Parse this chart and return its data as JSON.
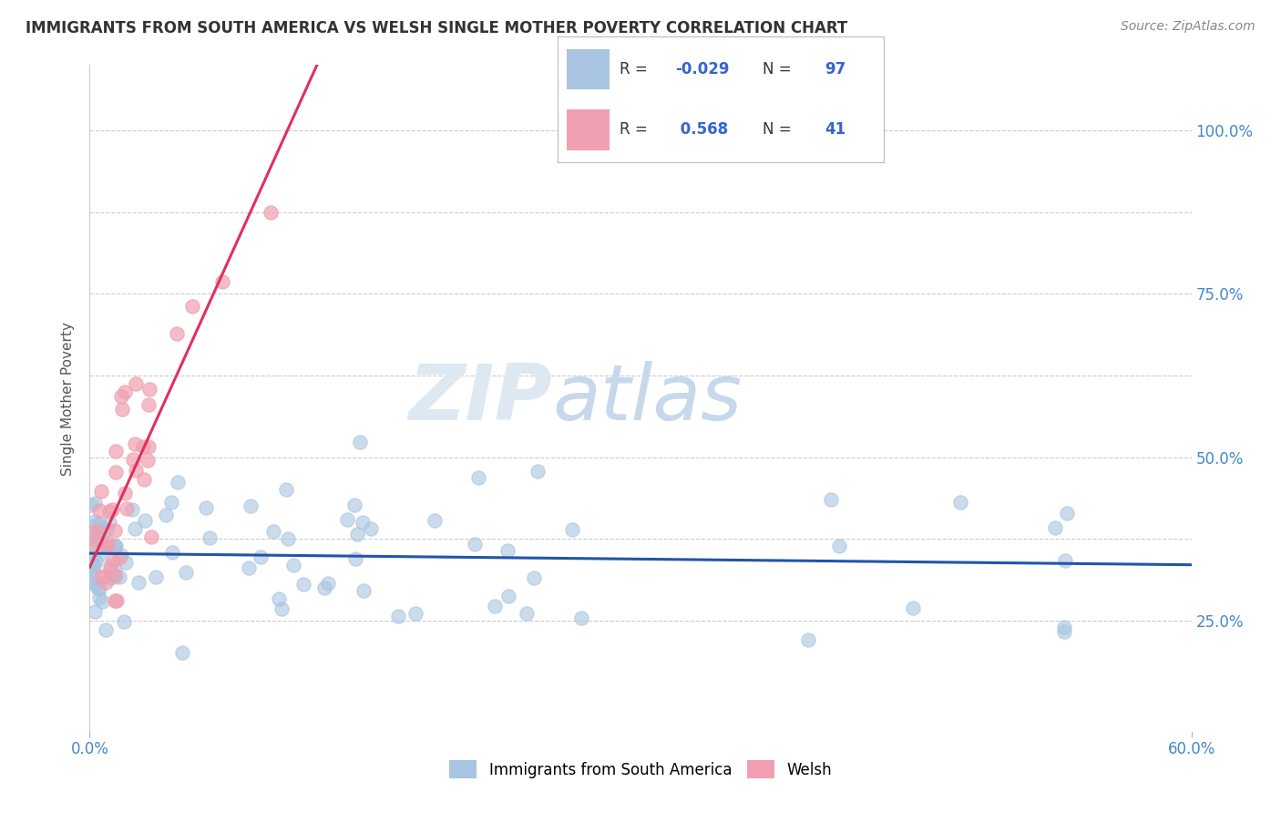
{
  "title": "IMMIGRANTS FROM SOUTH AMERICA VS WELSH SINGLE MOTHER POVERTY CORRELATION CHART",
  "source": "Source: ZipAtlas.com",
  "ylabel": "Single Mother Poverty",
  "xlim": [
    0.0,
    0.6
  ],
  "ylim": [
    0.08,
    1.1
  ],
  "blue_R": -0.029,
  "blue_N": 97,
  "pink_R": 0.568,
  "pink_N": 41,
  "blue_color": "#a8c4e0",
  "pink_color": "#f0a0b0",
  "blue_line_color": "#2255aa",
  "pink_line_color": "#e03060",
  "legend_blue_label": "Immigrants from South America",
  "legend_pink_label": "Welsh",
  "y_tick_vals": [
    0.25,
    0.375,
    0.5,
    0.625,
    0.75,
    0.875,
    1.0
  ],
  "y_tick_labels_right": [
    "25.0%",
    "",
    "50.0%",
    "",
    "75.0%",
    "",
    "100.0%"
  ]
}
